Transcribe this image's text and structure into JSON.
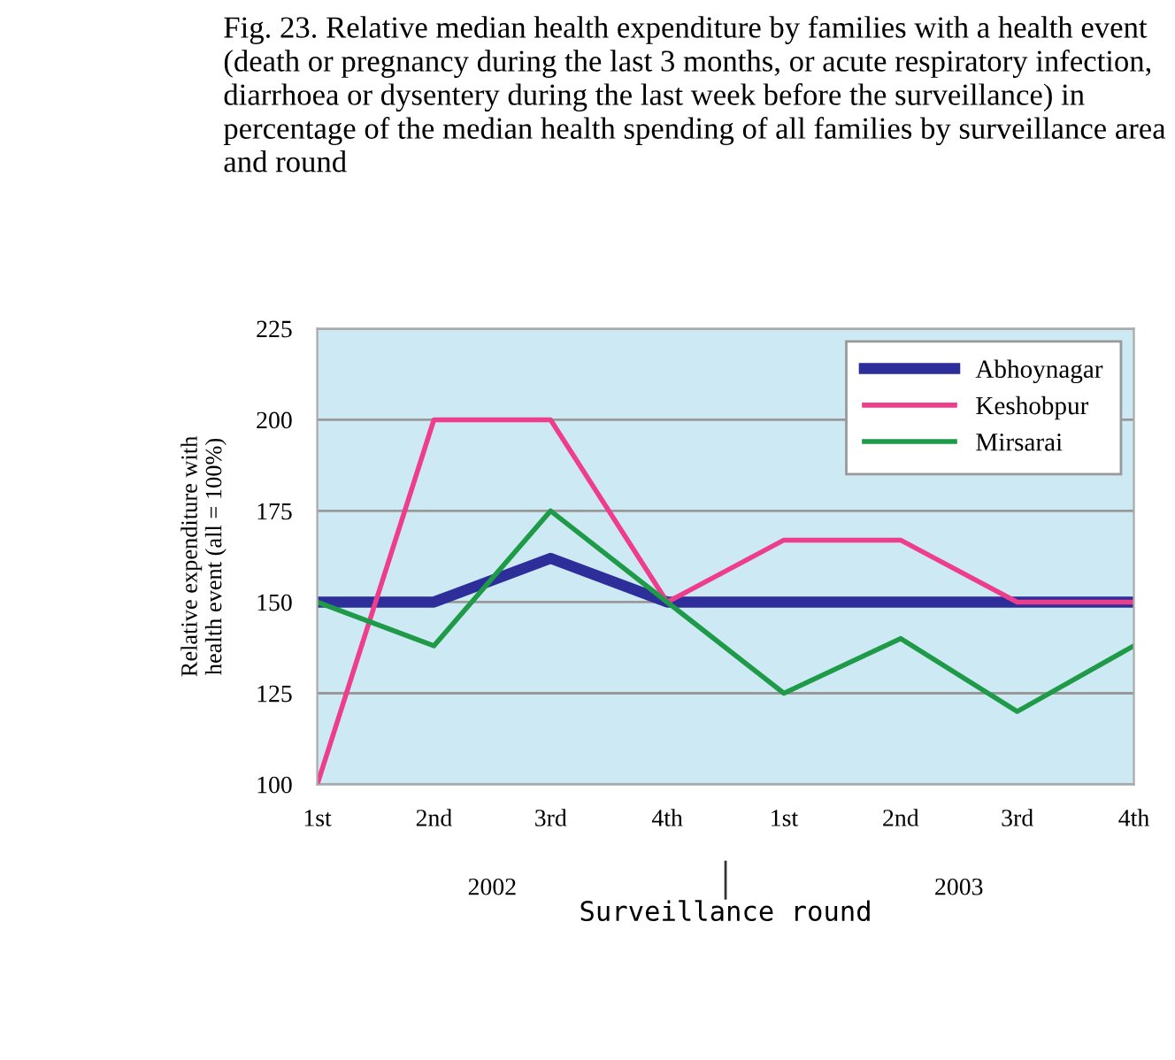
{
  "chart_data": {
    "type": "line",
    "title": "Fig. 23. Relative median health expenditure by families with a health event (death or pregnancy during the last 3 months, or acute respiratory infection, diarrhoea or dysentery during the last week before the surveillance) in percentage of the median health spending of all families by surveillance area and round",
    "xlabel": "Surveillance round",
    "ylabel": "Relative expenditure with\nhealth event (all = 100%)",
    "categories": [
      "1st",
      "2nd",
      "3rd",
      "4th",
      "1st",
      "2nd",
      "3rd",
      "4th"
    ],
    "annotations": [
      "2002",
      "2003"
    ],
    "series": [
      {
        "name": "Abhoynagar",
        "color": "#2e2e9a",
        "values": [
          150,
          150,
          162,
          150,
          150,
          150,
          150,
          150
        ]
      },
      {
        "name": "Keshobpur",
        "color": "#ee3d8c",
        "values": [
          100,
          200,
          200,
          150,
          167,
          167,
          150,
          150
        ]
      },
      {
        "name": "Mirsarai",
        "color": "#1e9a48",
        "values": [
          150,
          138,
          175,
          150,
          125,
          140,
          120,
          138
        ]
      }
    ],
    "ylim": [
      100,
      225
    ],
    "yticks": [
      100,
      125,
      150,
      175,
      200,
      225
    ],
    "grid": "y",
    "legend": "top right",
    "marker": "none",
    "line_style": "solid"
  }
}
